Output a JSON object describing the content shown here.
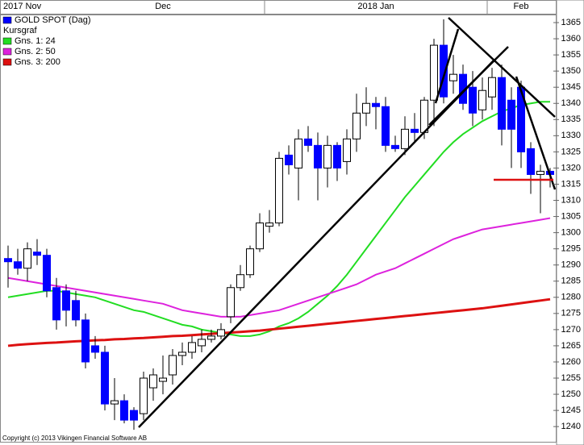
{
  "chart_data": {
    "type": "candlestick",
    "top_axis": [
      {
        "label": "2017 Nov",
        "index": 0
      },
      {
        "label": "Dec",
        "index": 16
      },
      {
        "label": "2018 Jan",
        "index": 38
      },
      {
        "label": "Feb",
        "index": 53
      }
    ],
    "categories": [
      null,
      null,
      null,
      null,
      null,
      null,
      null,
      null,
      null,
      null,
      null,
      null,
      null,
      null,
      null,
      null,
      null,
      null,
      null,
      null,
      null,
      null,
      null,
      null,
      null,
      null,
      null,
      null,
      null,
      null,
      null,
      null,
      null,
      null,
      null,
      null,
      null,
      null,
      null,
      null,
      null,
      null,
      null,
      null,
      null,
      null,
      null,
      null,
      null,
      null,
      null,
      null,
      null,
      null,
      null,
      null,
      null
    ],
    "series": [
      {
        "name": "GOLD SPOT (Dag)",
        "color": "#0000ff",
        "open": [
          1292,
          1291,
          1289,
          1294,
          1293,
          1283,
          1282,
          1279,
          1273,
          1265,
          1263,
          1247,
          1248,
          1245,
          1244,
          1252,
          1254,
          1256,
          1262,
          1263,
          1265,
          1267,
          1268,
          1274,
          1283,
          1287,
          1295,
          1302,
          1303,
          1324,
          1320,
          1329,
          1327,
          1320,
          1327,
          1322,
          1329,
          1337,
          1340,
          1339,
          1327,
          1326,
          1332,
          1331,
          1341,
          1358,
          1347,
          1349,
          1345,
          1338,
          1342,
          1348,
          1341,
          1345,
          1326,
          1318,
          1319
        ],
        "high": [
          1296,
          1295,
          1297,
          1298,
          1295,
          1286,
          1284,
          1282,
          1275,
          1268,
          1265,
          1255,
          1250,
          1246,
          1257,
          1258,
          1262,
          1264,
          1266,
          1268,
          1270,
          1270,
          1272,
          1284,
          1290,
          1296,
          1306,
          1307,
          1325,
          1327,
          1332,
          1333,
          1331,
          1330,
          1328,
          1332,
          1343,
          1345,
          1342,
          1342,
          1330,
          1336,
          1337,
          1342,
          1360,
          1366,
          1355,
          1352,
          1350,
          1348,
          1351,
          1352,
          1345,
          1347,
          1328,
          1321,
          1320
        ],
        "low": [
          1283,
          1287,
          1285,
          1290,
          1280,
          1270,
          1271,
          1271,
          1258,
          1261,
          1245,
          1242,
          1241,
          1239,
          1242,
          1248,
          1250,
          1253,
          1259,
          1261,
          1263,
          1266,
          1267,
          1272,
          1282,
          1286,
          1294,
          1300,
          1302,
          1318,
          1310,
          1325,
          1310,
          1314,
          1316,
          1318,
          1325,
          1333,
          1332,
          1325,
          1325,
          1324,
          1328,
          1329,
          1333,
          1340,
          1343,
          1338,
          1333,
          1335,
          1338,
          1327,
          1320,
          1320,
          1312,
          1306,
          1314
        ],
        "close": [
          1291,
          1289,
          1295,
          1293,
          1282,
          1273,
          1276,
          1273,
          1260,
          1263,
          1247,
          1248,
          1242,
          1242,
          1255,
          1256,
          1255,
          1262,
          1263,
          1266,
          1267,
          1268,
          1270,
          1283,
          1287,
          1295,
          1303,
          1303,
          1323,
          1321,
          1329,
          1327,
          1320,
          1327,
          1320,
          1329,
          1337,
          1340,
          1339,
          1327,
          1326,
          1332,
          1331,
          1341,
          1358,
          1342,
          1349,
          1340,
          1337,
          1344,
          1348,
          1332,
          1332,
          1325,
          1318,
          1319,
          1318
        ]
      }
    ],
    "lines": [
      {
        "name": "Gns. 1: 24",
        "color": "#22dd22",
        "values": [
          1280,
          1280.5,
          1281,
          1281.5,
          1282,
          1282,
          1281.5,
          1281,
          1280.5,
          1280,
          1279,
          1278,
          1277,
          1276,
          1275.5,
          1274.5,
          1273.5,
          1272.5,
          1271.5,
          1271,
          1270,
          1269.5,
          1269,
          1268.5,
          1268,
          1268,
          1268.5,
          1269.5,
          1271,
          1272,
          1273.5,
          1275.5,
          1278,
          1280.5,
          1283.5,
          1287,
          1291,
          1295,
          1299,
          1303,
          1307,
          1311,
          1314.5,
          1318,
          1321.5,
          1325,
          1328,
          1330.5,
          1332.5,
          1334.5,
          1336,
          1337.5,
          1338.5,
          1339.5,
          1340,
          1340.5,
          1340.5
        ]
      },
      {
        "name": "Gns. 2: 50",
        "color": "#dd22dd",
        "values": [
          1286,
          1285.5,
          1285,
          1284.5,
          1284,
          1283.5,
          1283,
          1282.5,
          1282,
          1281.5,
          1281,
          1280.5,
          1280,
          1279.5,
          1279,
          1278.5,
          1278,
          1277,
          1276,
          1275.5,
          1275,
          1274.5,
          1274,
          1274,
          1274,
          1274.5,
          1275,
          1275.5,
          1276,
          1277,
          1278,
          1279,
          1280,
          1281,
          1282,
          1283,
          1284,
          1285.5,
          1287,
          1288,
          1289,
          1290.5,
          1292,
          1293.5,
          1295,
          1296.5,
          1298,
          1299,
          1300,
          1301,
          1301.5,
          1302,
          1302.5,
          1303,
          1303.5,
          1304,
          1304.5
        ]
      },
      {
        "name": "Gns. 3: 200",
        "color": "#dd1111",
        "values": [
          1265,
          1265.3,
          1265.5,
          1265.7,
          1265.9,
          1266,
          1266.2,
          1266.4,
          1266.5,
          1266.7,
          1266.8,
          1267,
          1267.1,
          1267.3,
          1267.4,
          1267.6,
          1267.8,
          1268,
          1268.1,
          1268.3,
          1268.5,
          1268.7,
          1268.9,
          1269.1,
          1269.3,
          1269.5,
          1269.7,
          1270,
          1270.3,
          1270.6,
          1270.9,
          1271.2,
          1271.5,
          1271.8,
          1272.1,
          1272.4,
          1272.7,
          1273,
          1273.3,
          1273.6,
          1273.9,
          1274.2,
          1274.5,
          1274.8,
          1275.1,
          1275.4,
          1275.7,
          1276,
          1276.3,
          1276.6,
          1277,
          1277.4,
          1277.8,
          1278.2,
          1278.6,
          1279,
          1279.4
        ]
      }
    ],
    "legend_note": "Kursgraf",
    "copyright": "Copyright (c) 2013 Vikingen Financial Software AB",
    "ylim": [
      1235.3,
      1367.5
    ],
    "yticks": [
      1240,
      1245,
      1250,
      1255,
      1260,
      1265,
      1270,
      1275,
      1280,
      1285,
      1290,
      1295,
      1300,
      1305,
      1310,
      1315,
      1320,
      1325,
      1330,
      1335,
      1340,
      1345,
      1350,
      1355,
      1360,
      1365
    ]
  }
}
